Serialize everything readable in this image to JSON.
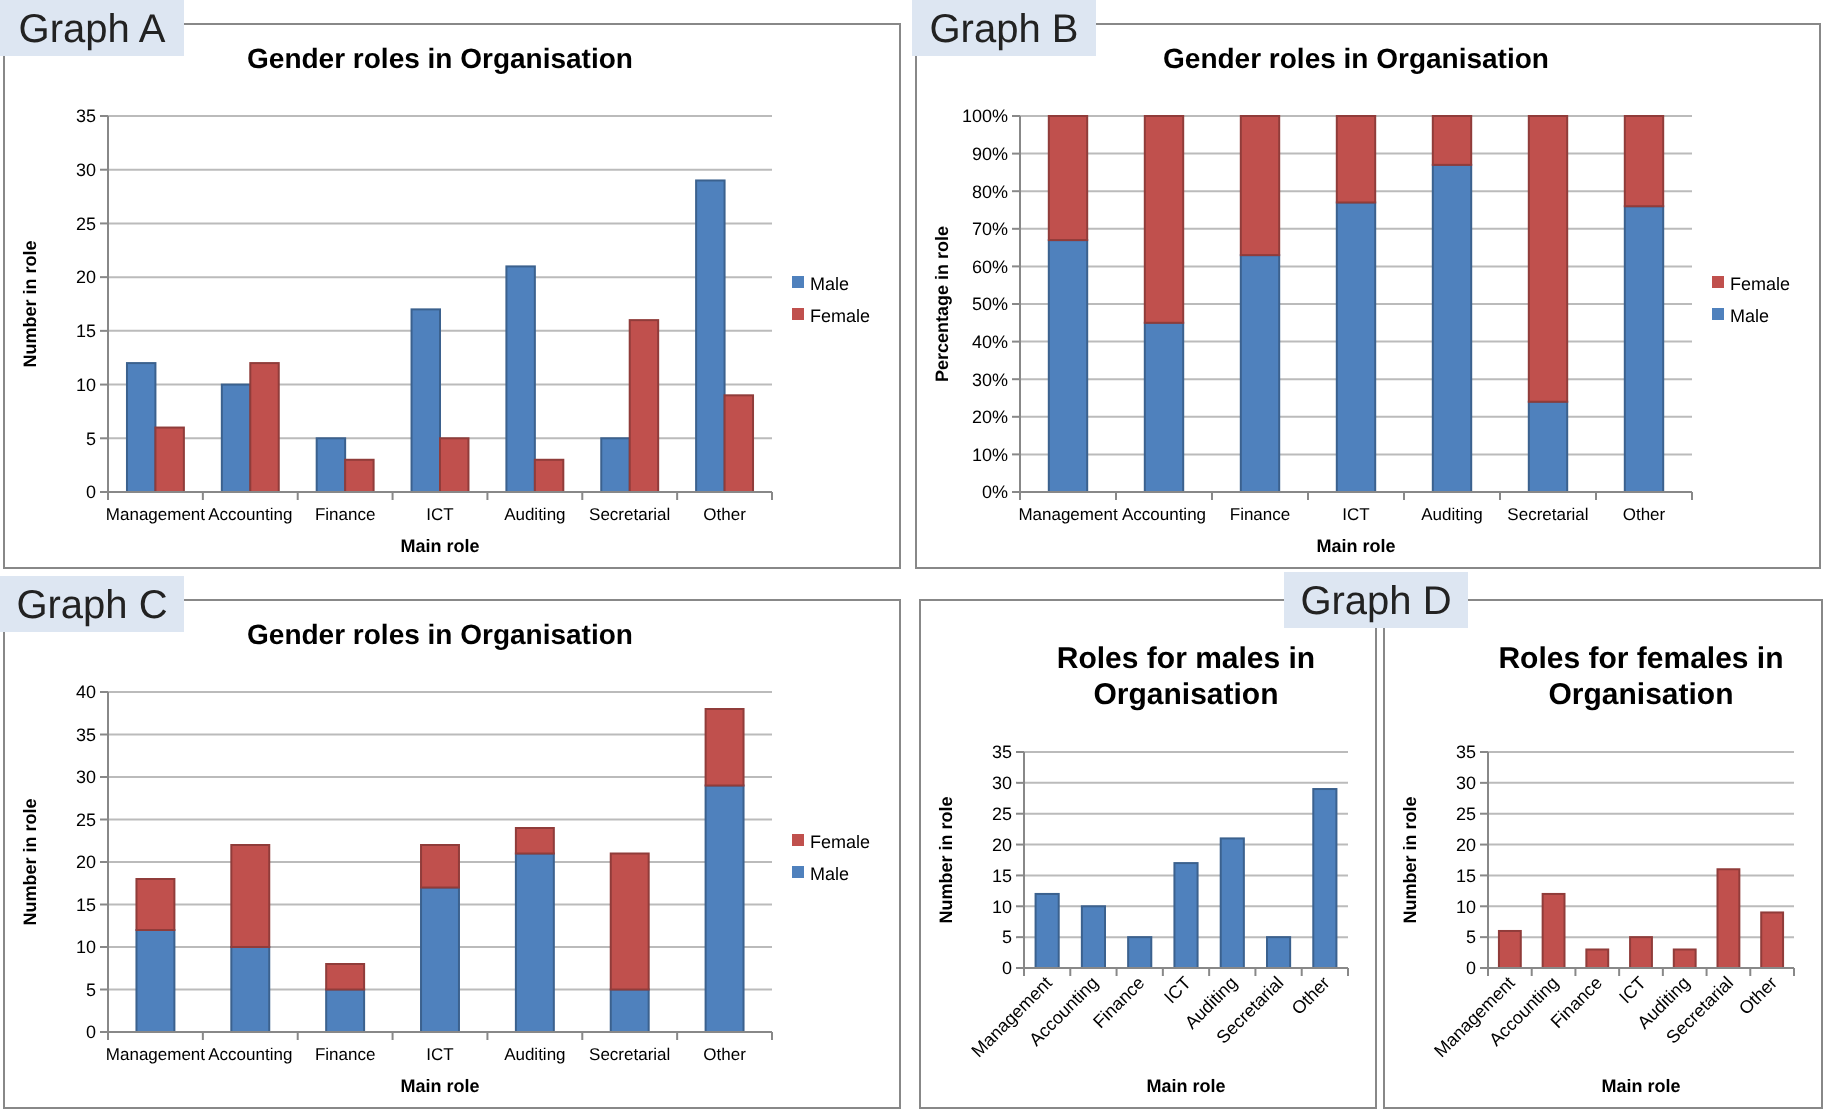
{
  "chart_data": [
    {
      "type": "bar",
      "title": "Gender roles in Organisation",
      "xlabel": "Main role",
      "ylabel": "Number in role",
      "annotations": [
        "Graph A"
      ],
      "categories": [
        "Management",
        "Accounting",
        "Finance",
        "ICT",
        "Auditing",
        "Secretarial",
        "Other"
      ],
      "series": [
        {
          "name": "Male",
          "color": "#4f81bd",
          "values": [
            12,
            10,
            5,
            17,
            21,
            5,
            29
          ]
        },
        {
          "name": "Female",
          "color": "#c0504d",
          "values": [
            6,
            12,
            3,
            5,
            3,
            16,
            9
          ]
        }
      ],
      "ylim": [
        0,
        35
      ],
      "yticks": [
        0,
        5,
        10,
        15,
        20,
        25,
        30,
        35
      ],
      "grid": "y",
      "legend": "right"
    },
    {
      "type": "bar",
      "title": "Gender roles in Organisation",
      "xlabel": "Main role",
      "ylabel": "Percentage in role",
      "annotations": [
        "Graph B"
      ],
      "categories": [
        "Management",
        "Accounting",
        "Finance",
        "ICT",
        "Auditing",
        "Secretarial",
        "Other"
      ],
      "stacked": true,
      "series": [
        {
          "name": "Male",
          "color": "#4f81bd",
          "values": [
            67,
            45,
            63,
            77,
            87,
            24,
            76
          ]
        },
        {
          "name": "Female",
          "color": "#c0504d",
          "values": [
            33,
            55,
            37,
            23,
            13,
            76,
            24
          ]
        }
      ],
      "ylim": [
        0,
        100
      ],
      "yticks": [
        {
          "value": 0,
          "label": "0%"
        },
        {
          "value": 10,
          "label": "10%"
        },
        {
          "value": 20,
          "label": "20%"
        },
        {
          "value": 30,
          "label": "30%"
        },
        {
          "value": 40,
          "label": "40%"
        },
        {
          "value": 50,
          "label": "50%"
        },
        {
          "value": 60,
          "label": "60%"
        },
        {
          "value": 70,
          "label": "70%"
        },
        {
          "value": 80,
          "label": "80%"
        },
        {
          "value": 90,
          "label": "90%"
        },
        {
          "value": 100,
          "label": "100%"
        }
      ],
      "grid": "y",
      "legend": "right"
    },
    {
      "type": "bar",
      "title": "Gender roles in Organisation",
      "xlabel": "Main role",
      "ylabel": "Number in role",
      "annotations": [
        "Graph C"
      ],
      "categories": [
        "Management",
        "Accounting",
        "Finance",
        "ICT",
        "Auditing",
        "Secretarial",
        "Other"
      ],
      "stacked": true,
      "series": [
        {
          "name": "Male",
          "color": "#4f81bd",
          "values": [
            12,
            10,
            5,
            17,
            21,
            5,
            29
          ]
        },
        {
          "name": "Female",
          "color": "#c0504d",
          "values": [
            6,
            12,
            3,
            5,
            3,
            16,
            9
          ]
        }
      ],
      "ylim": [
        0,
        40
      ],
      "yticks": [
        0,
        5,
        10,
        15,
        20,
        25,
        30,
        35,
        40
      ],
      "grid": "y",
      "legend": "right"
    },
    {
      "type": "bar",
      "title": "Roles for males in Organisation",
      "xlabel": "Main role",
      "ylabel": "Number in role",
      "annotations": [
        "Graph D"
      ],
      "categories": [
        "Management",
        "Accounting",
        "Finance",
        "ICT",
        "Auditing",
        "Secretarial",
        "Other"
      ],
      "series": [
        {
          "color": "#4f81bd",
          "values": [
            12,
            10,
            5,
            17,
            21,
            5,
            29
          ]
        }
      ],
      "ylim": [
        0,
        35
      ],
      "yticks": [
        0,
        5,
        10,
        15,
        20,
        25,
        30,
        35
      ],
      "grid": "y"
    },
    {
      "type": "bar",
      "title": "Roles for females in Organisation",
      "xlabel": "Main role",
      "ylabel": "Number in role",
      "categories": [
        "Management",
        "Accounting",
        "Finance",
        "ICT",
        "Auditing",
        "Secretarial",
        "Other"
      ],
      "series": [
        {
          "color": "#c0504d",
          "values": [
            6,
            12,
            3,
            5,
            3,
            16,
            9
          ]
        }
      ],
      "ylim": [
        0,
        35
      ],
      "yticks": [
        0,
        5,
        10,
        15,
        20,
        25,
        30,
        35
      ],
      "grid": "y"
    }
  ]
}
